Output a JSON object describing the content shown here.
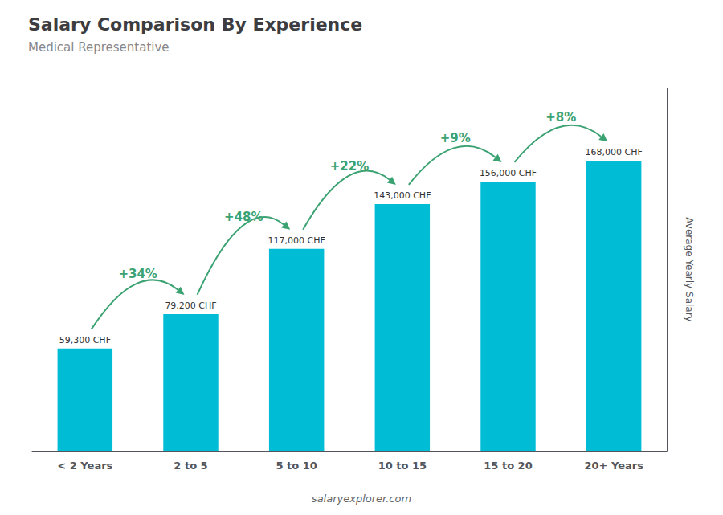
{
  "chart_data": {
    "type": "bar",
    "title": "Salary Comparison By Experience",
    "subtitle": "Medical Representative",
    "ylabel": "Average Yearly Salary",
    "categories": [
      "< 2 Years",
      "2 to 5",
      "5 to 10",
      "10 to 15",
      "15 to 20",
      "20+ Years"
    ],
    "values": [
      59300,
      79200,
      117000,
      143000,
      156000,
      168000
    ],
    "value_labels": [
      "59,300 CHF",
      "79,200 CHF",
      "117,000 CHF",
      "143,000 CHF",
      "156,000 CHF",
      "168,000 CHF"
    ],
    "data_labels": true,
    "color": "#00bcd4",
    "ylim": [
      0,
      210000
    ],
    "grid": false,
    "tick_labels": "x",
    "annotations": [
      {
        "text": "+34%",
        "from": "< 2 Years",
        "to": "2 to 5"
      },
      {
        "text": "+48%",
        "from": "2 to 5",
        "to": "5 to 10"
      },
      {
        "text": "+22%",
        "from": "5 to 10",
        "to": "10 to 15"
      },
      {
        "text": "+9%",
        "from": "10 to 15",
        "to": "15 to 20"
      },
      {
        "text": "+8%",
        "from": "15 to 20",
        "to": "20+ Years"
      }
    ],
    "source": "salaryexplorer.com"
  }
}
